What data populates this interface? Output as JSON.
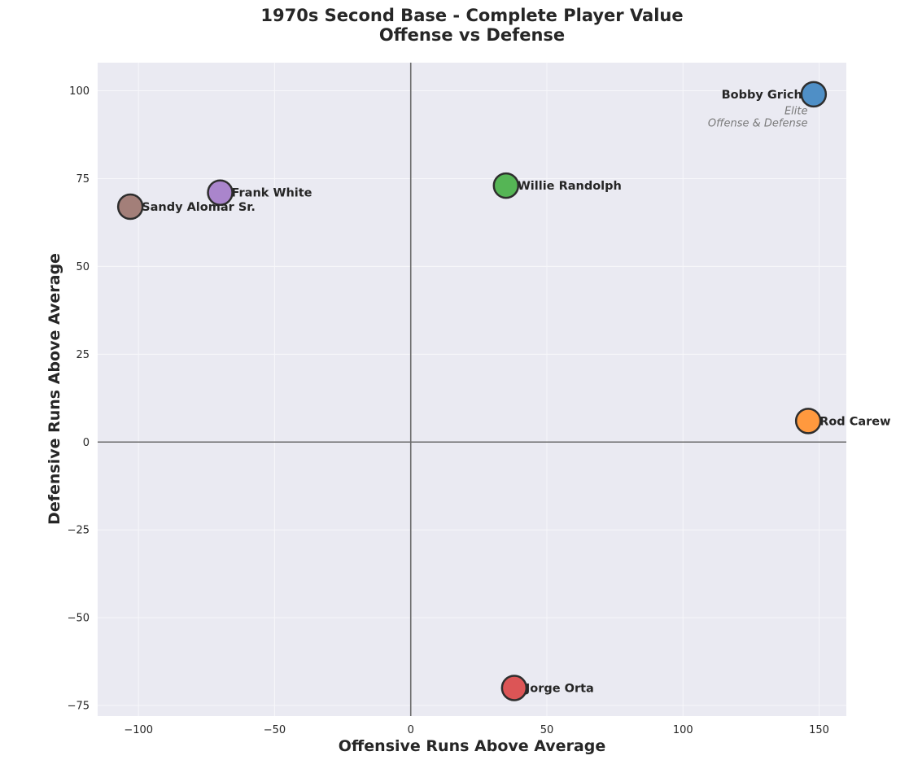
{
  "chart_data": {
    "type": "scatter",
    "title": "1970s Second Base - Complete Player Value",
    "subtitle": "Offense vs Defense",
    "xlabel": "Offensive Runs Above Average",
    "ylabel": "Defensive Runs Above Average",
    "xlim": [
      -115,
      160
    ],
    "ylim": [
      -78,
      108
    ],
    "xticks": [
      -100,
      -50,
      0,
      50,
      100,
      150
    ],
    "yticks": [
      -75,
      -50,
      -25,
      0,
      25,
      50,
      75,
      100
    ],
    "xtick_labels": [
      "−100",
      "−50",
      "0",
      "50",
      "100",
      "150"
    ],
    "ytick_labels": [
      "−75",
      "−50",
      "−25",
      "0",
      "25",
      "50",
      "75",
      "100"
    ],
    "grid": true,
    "reference_lines": {
      "x": 0,
      "y": 0
    },
    "points": [
      {
        "name": "Bobby Grich",
        "x": 148,
        "y": 99,
        "color": "#4f8fc6"
      },
      {
        "name": "Rod Carew",
        "x": 146,
        "y": 6,
        "color": "#ff993e"
      },
      {
        "name": "Willie Randolph",
        "x": 35,
        "y": 73,
        "color": "#55b555"
      },
      {
        "name": "Frank White",
        "x": -70,
        "y": 71,
        "color": "#aa85cc"
      },
      {
        "name": "Sandy Alomar Sr.",
        "x": -103,
        "y": 67,
        "color": "#a37f79"
      },
      {
        "name": "Jorge Orta",
        "x": 38,
        "y": -70,
        "color": "#dc5556"
      }
    ],
    "annotation": {
      "lines": [
        "Elite",
        "Offense & Defense"
      ],
      "x": 147,
      "y": 97
    }
  },
  "colors": {
    "plot_background": "#eaeaf2",
    "grid": "#f7f7fa",
    "reference_line": "#6b6b6b",
    "marker_edge": "#2e2e2e",
    "text": "#262626"
  }
}
